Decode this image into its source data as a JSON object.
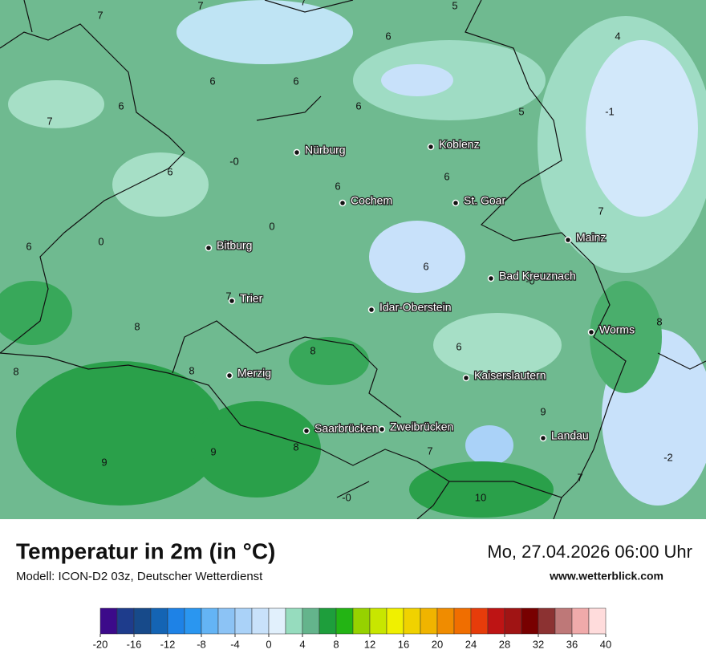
{
  "map": {
    "temperature_labels": [
      "7",
      "7",
      "7",
      "5",
      "6",
      "4",
      "6",
      "6",
      "6",
      "7",
      "6",
      "5",
      "-1",
      "-0",
      "6",
      "6",
      "6",
      "0",
      "7",
      "0",
      "6",
      "6",
      "-0",
      "7",
      "8",
      "8",
      "8",
      "6",
      "8",
      "8",
      "9",
      "8",
      "7",
      "9",
      "9",
      "-2",
      "7",
      "-0",
      "10"
    ],
    "cities": [
      "Nürburg",
      "Koblenz",
      "Cochem",
      "St. Goar",
      "Bitburg",
      "Mainz",
      "Bad Kreuznach",
      "Trier",
      "Idar-Oberstein",
      "Worms",
      "Merzig",
      "Kaiserslautern",
      "Saarbrücken",
      "Zweibrücken",
      "Landau"
    ]
  },
  "footer": {
    "title": "Temperatur in 2m (in °C)",
    "subtitle": "Modell: ICON-D2 03z, Deutscher Wetterdienst",
    "datetime": "Mo, 27.04.2026 06:00 Uhr",
    "website": "www.wetterblick.com"
  },
  "colorbar": {
    "ticks": [
      -20,
      -16,
      -12,
      -8,
      -4,
      0,
      4,
      8,
      12,
      16,
      20,
      24,
      28,
      32,
      36,
      40
    ],
    "colors": [
      "#3c0a8a",
      "#1e3c8c",
      "#174a8a",
      "#1464b4",
      "#1e82e6",
      "#2a96f0",
      "#64b4f5",
      "#8cc3f5",
      "#aad2f8",
      "#c8e1fa",
      "#e1f0fc",
      "#96dcbe",
      "#64b48c",
      "#1e9e3c",
      "#23b414",
      "#96d200",
      "#c8e600",
      "#f0f000",
      "#f0d200",
      "#f0b400",
      "#f08c00",
      "#f06e00",
      "#e63c0a",
      "#be1414",
      "#a01414",
      "#780000",
      "#8c3232",
      "#be7878",
      "#f0aaaa",
      "#ffdcdc"
    ]
  }
}
